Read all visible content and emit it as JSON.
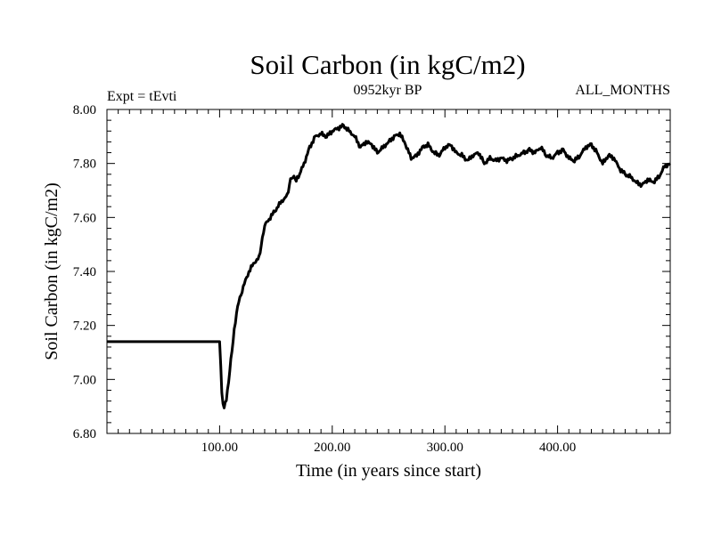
{
  "chart_data": {
    "type": "line",
    "title": "Soil Carbon (in kgC/m2)",
    "subtitle": "0952kyr BP",
    "left_label": "Expt = tEvti",
    "right_label": "ALL_MONTHS",
    "xlabel": "Time (in years since start)",
    "ylabel": "Soil Carbon (in kgC/m2)",
    "xlim": [
      0,
      500
    ],
    "ylim": [
      6.8,
      8.0
    ],
    "x_ticks": [
      100,
      200,
      300,
      400
    ],
    "x_tick_labels": [
      "100.00",
      "200.00",
      "300.00",
      "400.00"
    ],
    "y_ticks": [
      6.8,
      7.0,
      7.2,
      7.4,
      7.6,
      7.8,
      8.0
    ],
    "y_tick_labels": [
      "6.80",
      "7.00",
      "7.20",
      "7.40",
      "7.60",
      "7.80",
      "8.00"
    ],
    "grid": false,
    "series": [
      {
        "name": "Soil Carbon",
        "color": "#000000",
        "x": [
          0,
          99,
          100,
          101,
          102,
          103,
          104,
          106,
          108,
          110,
          113,
          116,
          120,
          125,
          130,
          135,
          138,
          140,
          145,
          150,
          155,
          160,
          163,
          165,
          168,
          170,
          175,
          180,
          185,
          190,
          195,
          200,
          205,
          210,
          215,
          220,
          225,
          230,
          235,
          240,
          245,
          250,
          255,
          260,
          265,
          270,
          275,
          280,
          285,
          290,
          295,
          300,
          305,
          310,
          315,
          320,
          325,
          330,
          335,
          340,
          345,
          350,
          355,
          360,
          365,
          370,
          375,
          380,
          385,
          390,
          395,
          400,
          405,
          410,
          415,
          420,
          425,
          430,
          435,
          440,
          445,
          450,
          455,
          460,
          465,
          470,
          475,
          480,
          485,
          490,
          495,
          500
        ],
        "values": [
          7.14,
          7.14,
          7.14,
          7.05,
          6.95,
          6.91,
          6.9,
          6.93,
          6.99,
          7.07,
          7.18,
          7.27,
          7.33,
          7.39,
          7.43,
          7.45,
          7.52,
          7.57,
          7.6,
          7.63,
          7.66,
          7.68,
          7.74,
          7.75,
          7.74,
          7.75,
          7.8,
          7.86,
          7.9,
          7.91,
          7.9,
          7.92,
          7.93,
          7.94,
          7.92,
          7.9,
          7.86,
          7.88,
          7.87,
          7.84,
          7.86,
          7.88,
          7.9,
          7.91,
          7.87,
          7.82,
          7.83,
          7.86,
          7.87,
          7.84,
          7.83,
          7.86,
          7.87,
          7.84,
          7.83,
          7.81,
          7.83,
          7.84,
          7.8,
          7.82,
          7.81,
          7.82,
          7.81,
          7.82,
          7.83,
          7.84,
          7.85,
          7.84,
          7.86,
          7.83,
          7.82,
          7.84,
          7.85,
          7.82,
          7.81,
          7.83,
          7.86,
          7.87,
          7.84,
          7.8,
          7.83,
          7.82,
          7.78,
          7.76,
          7.75,
          7.73,
          7.72,
          7.74,
          7.73,
          7.75,
          7.79,
          7.8
        ]
      }
    ]
  }
}
